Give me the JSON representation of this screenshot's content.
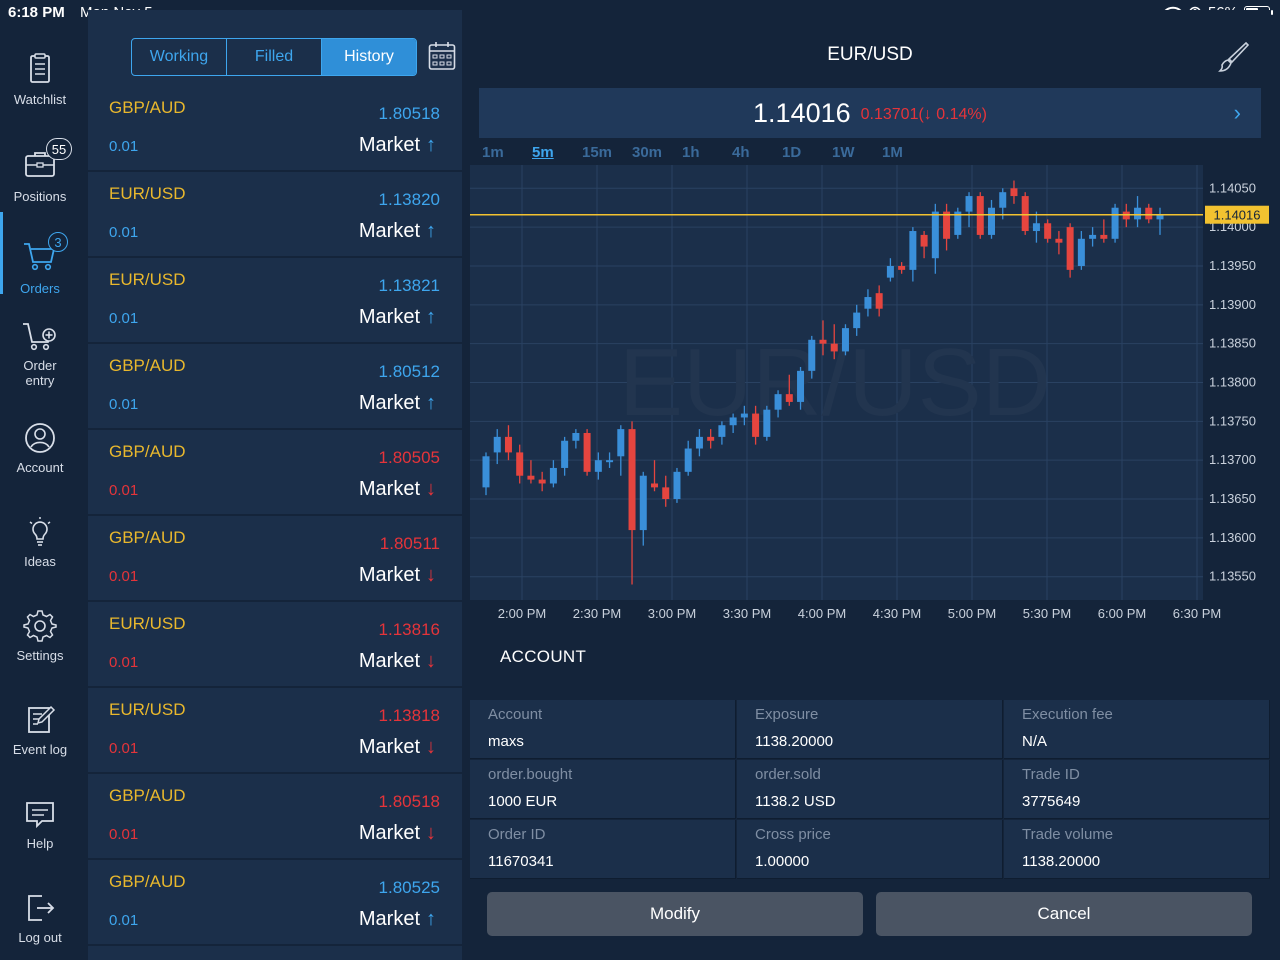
{
  "status": {
    "time": "6:18 PM",
    "date": "Mon Nov 5",
    "battery": "56%"
  },
  "sidebar": {
    "items": [
      {
        "label": "Watchlist",
        "icon": "watchlist-icon"
      },
      {
        "label": "Positions",
        "icon": "briefcase-icon",
        "badge": "55"
      },
      {
        "label": "Orders",
        "icon": "cart-icon",
        "badge": "3",
        "active": true
      },
      {
        "label": "Order\nentry",
        "icon": "cart-plus-icon"
      },
      {
        "label": "Account",
        "icon": "user-icon"
      },
      {
        "label": "Ideas",
        "icon": "lightbulb-icon"
      },
      {
        "label": "Settings",
        "icon": "gear-icon"
      },
      {
        "label": "Event log",
        "icon": "edit-log-icon"
      },
      {
        "label": "Help",
        "icon": "help-chat-icon"
      },
      {
        "label": "Log out",
        "icon": "logout-icon"
      }
    ]
  },
  "orders": {
    "tabs": [
      "Working",
      "Filled",
      "History"
    ],
    "selected_tab": "History",
    "rows": [
      {
        "pair": "GBP/AUD",
        "price": "1.80518",
        "qty": "0.01",
        "type": "Market",
        "dir": "up"
      },
      {
        "pair": "EUR/USD",
        "price": "1.13820",
        "qty": "0.01",
        "type": "Market",
        "dir": "up"
      },
      {
        "pair": "EUR/USD",
        "price": "1.13821",
        "qty": "0.01",
        "type": "Market",
        "dir": "up"
      },
      {
        "pair": "GBP/AUD",
        "price": "1.80512",
        "qty": "0.01",
        "type": "Market",
        "dir": "up"
      },
      {
        "pair": "GBP/AUD",
        "price": "1.80505",
        "qty": "0.01",
        "type": "Market",
        "dir": "down"
      },
      {
        "pair": "GBP/AUD",
        "price": "1.80511",
        "qty": "0.01",
        "type": "Market",
        "dir": "down"
      },
      {
        "pair": "EUR/USD",
        "price": "1.13816",
        "qty": "0.01",
        "type": "Market",
        "dir": "down"
      },
      {
        "pair": "EUR/USD",
        "price": "1.13818",
        "qty": "0.01",
        "type": "Market",
        "dir": "down"
      },
      {
        "pair": "GBP/AUD",
        "price": "1.80518",
        "qty": "0.01",
        "type": "Market",
        "dir": "down"
      },
      {
        "pair": "GBP/AUD",
        "price": "1.80525",
        "qty": "0.01",
        "type": "Market",
        "dir": "up"
      }
    ]
  },
  "chart": {
    "symbol": "EUR/USD",
    "quote": "1.14016",
    "change": "0.13701(↓ 0.14%)",
    "timeframes": [
      "1m",
      "5m",
      "15m",
      "30m",
      "1h",
      "4h",
      "1D",
      "1W",
      "1M"
    ],
    "selected_timeframe": "5m",
    "watermark": "EUR/USD",
    "current_price_label": "1.14016"
  },
  "chart_data": {
    "type": "candlestick",
    "x_ticks": [
      "2:00 PM",
      "2:30 PM",
      "3:00 PM",
      "3:30 PM",
      "4:00 PM",
      "4:30 PM",
      "5:00 PM",
      "5:30 PM",
      "6:00 PM",
      "6:30 PM"
    ],
    "y_ticks": [
      "1.14050",
      "1.14000",
      "1.13950",
      "1.13900",
      "1.13850",
      "1.13800",
      "1.13750",
      "1.13700",
      "1.13650",
      "1.13600",
      "1.13550"
    ],
    "ylim": [
      1.1352,
      1.1408
    ],
    "current_price": 1.14016,
    "candles": [
      [
        1.13665,
        1.1371,
        1.13655,
        1.13705
      ],
      [
        1.1371,
        1.1374,
        1.13695,
        1.1373
      ],
      [
        1.1373,
        1.13745,
        1.137,
        1.1371
      ],
      [
        1.1371,
        1.1372,
        1.1367,
        1.1368
      ],
      [
        1.1368,
        1.137,
        1.1367,
        1.13675
      ],
      [
        1.13675,
        1.13685,
        1.1366,
        1.1367
      ],
      [
        1.1367,
        1.137,
        1.13665,
        1.1369
      ],
      [
        1.1369,
        1.1373,
        1.1368,
        1.13725
      ],
      [
        1.13725,
        1.1374,
        1.13715,
        1.13735
      ],
      [
        1.13735,
        1.1374,
        1.1368,
        1.13685
      ],
      [
        1.13685,
        1.1371,
        1.13675,
        1.137
      ],
      [
        1.137,
        1.1371,
        1.1369,
        1.137
      ],
      [
        1.13705,
        1.13745,
        1.1368,
        1.1374
      ],
      [
        1.1374,
        1.1375,
        1.1354,
        1.1361
      ],
      [
        1.1361,
        1.13685,
        1.1359,
        1.1368
      ],
      [
        1.1367,
        1.137,
        1.1366,
        1.13665
      ],
      [
        1.13665,
        1.1368,
        1.1364,
        1.1365
      ],
      [
        1.1365,
        1.1369,
        1.13645,
        1.13685
      ],
      [
        1.13685,
        1.13725,
        1.1368,
        1.13715
      ],
      [
        1.13715,
        1.1374,
        1.13705,
        1.1373
      ],
      [
        1.1373,
        1.1374,
        1.13715,
        1.13725
      ],
      [
        1.1373,
        1.1375,
        1.1372,
        1.13745
      ],
      [
        1.13745,
        1.1376,
        1.13735,
        1.13755
      ],
      [
        1.13755,
        1.1377,
        1.13745,
        1.1376
      ],
      [
        1.1376,
        1.1377,
        1.1372,
        1.1373
      ],
      [
        1.1373,
        1.1377,
        1.13725,
        1.13765
      ],
      [
        1.13765,
        1.1379,
        1.13755,
        1.13785
      ],
      [
        1.13785,
        1.1381,
        1.1377,
        1.13775
      ],
      [
        1.13775,
        1.1382,
        1.13765,
        1.13815
      ],
      [
        1.13815,
        1.1386,
        1.13805,
        1.13855
      ],
      [
        1.13855,
        1.1388,
        1.13835,
        1.1385
      ],
      [
        1.1385,
        1.13875,
        1.1383,
        1.1384
      ],
      [
        1.1384,
        1.13875,
        1.13835,
        1.1387
      ],
      [
        1.1387,
        1.139,
        1.1386,
        1.1389
      ],
      [
        1.13895,
        1.1392,
        1.13885,
        1.1391
      ],
      [
        1.13915,
        1.13925,
        1.13885,
        1.13895
      ],
      [
        1.13935,
        1.1396,
        1.1393,
        1.1395
      ],
      [
        1.1395,
        1.13955,
        1.1394,
        1.13945
      ],
      [
        1.13945,
        1.14,
        1.1393,
        1.13995
      ],
      [
        1.1399,
        1.13995,
        1.1396,
        1.13975
      ],
      [
        1.1396,
        1.1403,
        1.1394,
        1.1402
      ],
      [
        1.1402,
        1.1403,
        1.1397,
        1.13985
      ],
      [
        1.1399,
        1.14025,
        1.13985,
        1.1402
      ],
      [
        1.1402,
        1.14045,
        1.14,
        1.1404
      ],
      [
        1.1404,
        1.14045,
        1.13985,
        1.1399
      ],
      [
        1.1399,
        1.14035,
        1.13985,
        1.14025
      ],
      [
        1.14025,
        1.1405,
        1.1401,
        1.14045
      ],
      [
        1.1405,
        1.1406,
        1.1403,
        1.1404
      ],
      [
        1.1404,
        1.14045,
        1.1399,
        1.13995
      ],
      [
        1.13995,
        1.1402,
        1.1398,
        1.14005
      ],
      [
        1.14005,
        1.1401,
        1.1398,
        1.13985
      ],
      [
        1.13985,
        1.13995,
        1.13965,
        1.1398
      ],
      [
        1.14,
        1.14005,
        1.13935,
        1.13945
      ],
      [
        1.1395,
        1.13995,
        1.13945,
        1.13985
      ],
      [
        1.13985,
        1.14,
        1.13975,
        1.1399
      ],
      [
        1.1399,
        1.1401,
        1.1398,
        1.13985
      ],
      [
        1.13985,
        1.1403,
        1.1398,
        1.14025
      ],
      [
        1.1402,
        1.1403,
        1.14,
        1.1401
      ],
      [
        1.1401,
        1.1404,
        1.14,
        1.14025
      ],
      [
        1.14025,
        1.1403,
        1.14005,
        1.1401
      ],
      [
        1.1401,
        1.14025,
        1.1399,
        1.14015
      ]
    ]
  },
  "account": {
    "title": "ACCOUNT",
    "cells": [
      {
        "key": "Account",
        "value": "maxs"
      },
      {
        "key": "Exposure",
        "value": "1138.20000"
      },
      {
        "key": "Execution fee",
        "value": "N/A"
      },
      {
        "key": "order.bought",
        "value": "1000 EUR"
      },
      {
        "key": "order.sold",
        "value": "1138.2 USD"
      },
      {
        "key": "Trade ID",
        "value": "3775649"
      },
      {
        "key": "Order ID",
        "value": "11670341"
      },
      {
        "key": "Cross price",
        "value": "1.00000"
      },
      {
        "key": "Trade volume",
        "value": "1138.20000"
      }
    ],
    "modify_label": "Modify",
    "cancel_label": "Cancel"
  },
  "colors": {
    "accent": "#3ea6ee",
    "bull": "#3a8fd9",
    "bear": "#e5453f",
    "pair": "#e9b82d",
    "price_line": "#f2c230"
  }
}
